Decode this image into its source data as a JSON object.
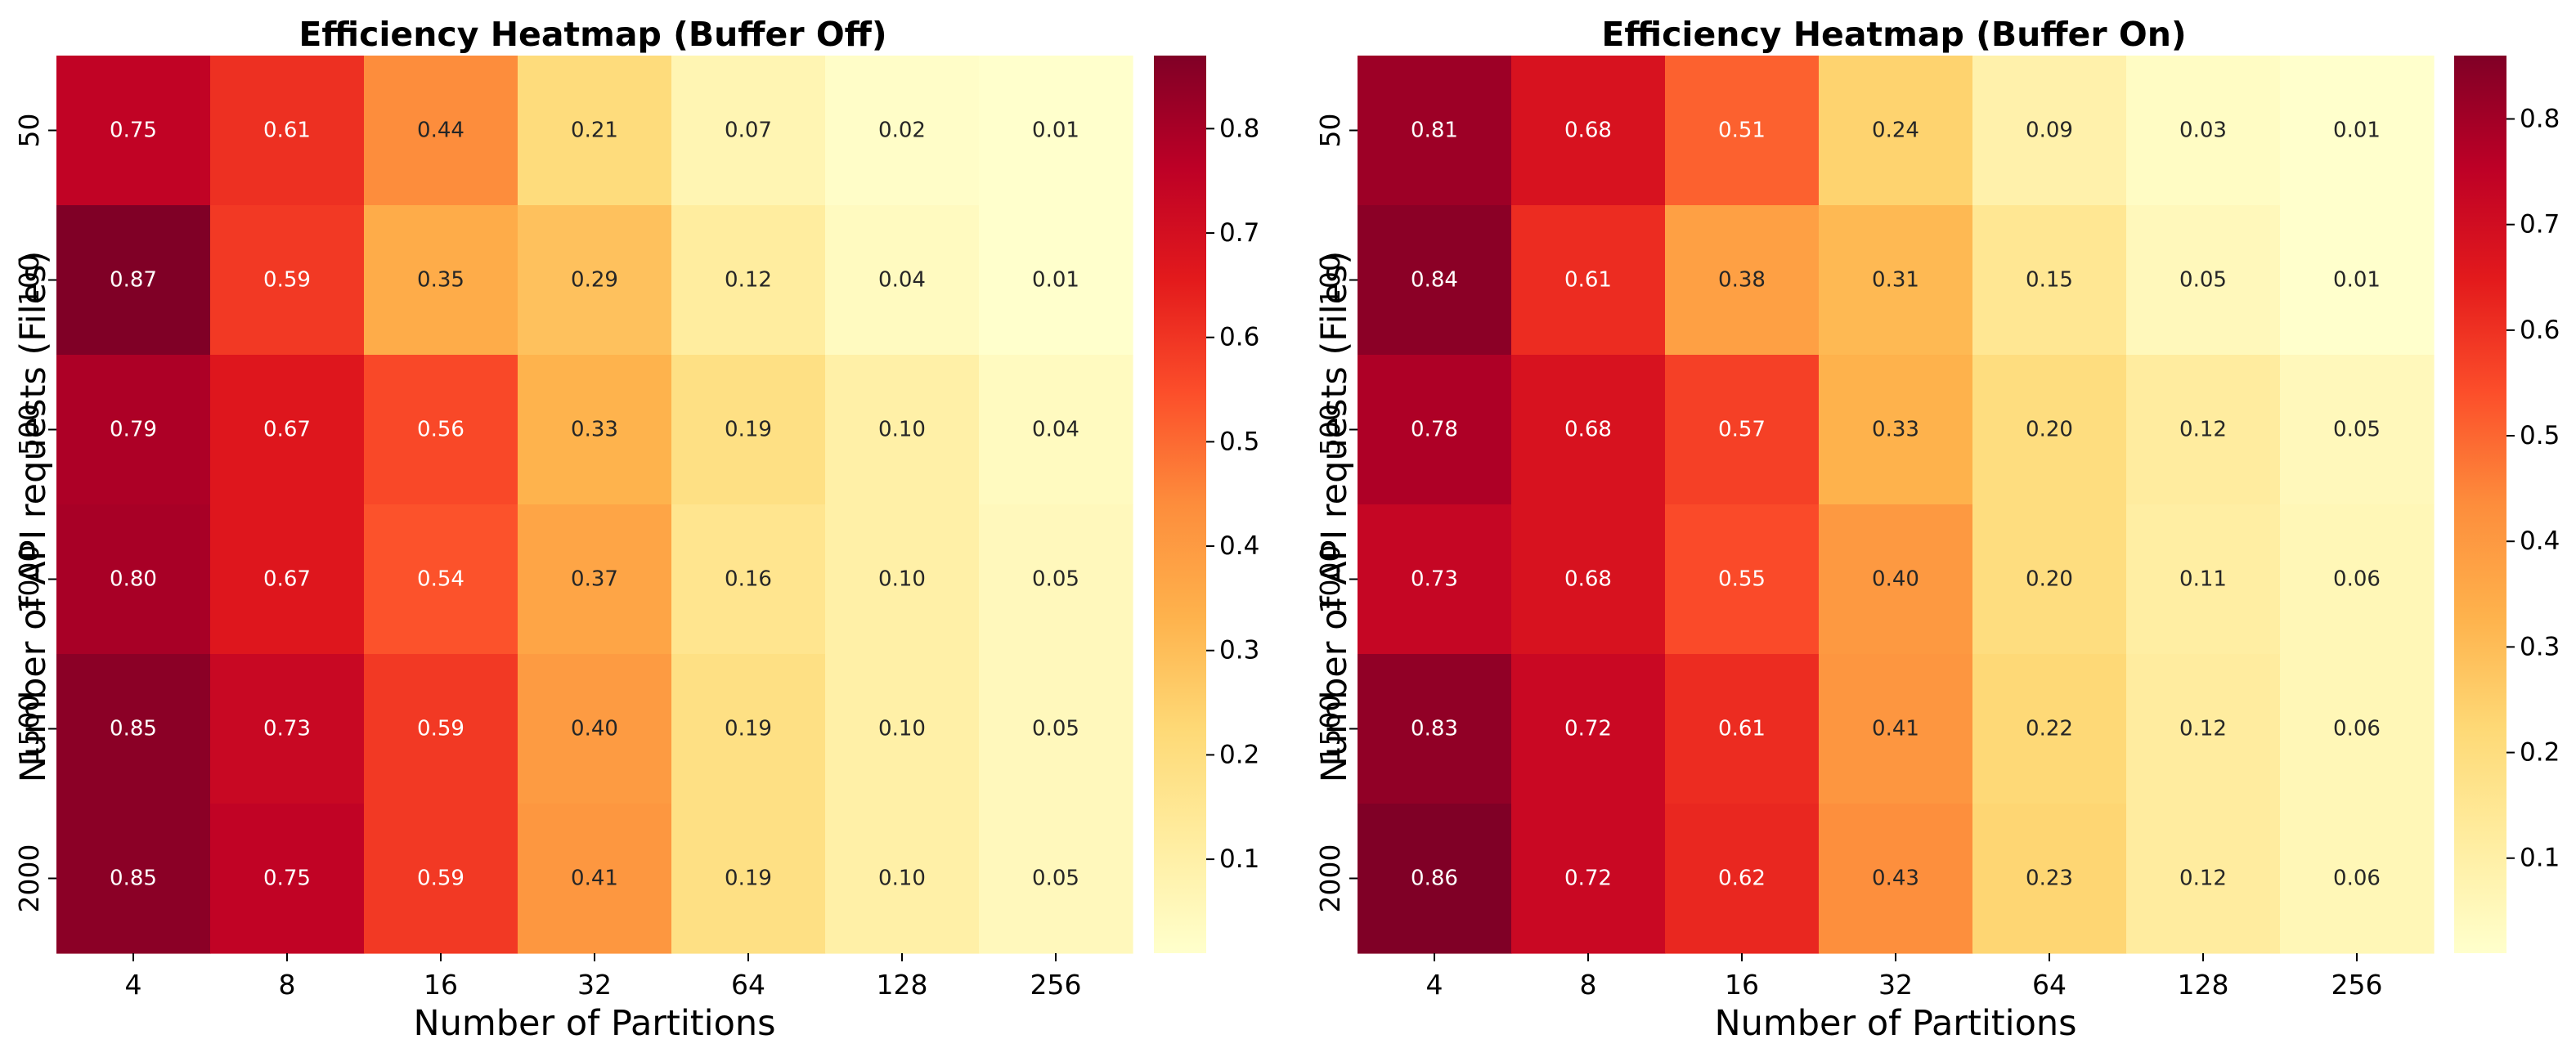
{
  "chart_data": [
    {
      "type": "heatmap",
      "title": "Efficiency Heatmap (Buffer Off)",
      "xlabel": "Number of Partitions",
      "ylabel": "Number of API requests (Files)",
      "x_categories": [
        "4",
        "8",
        "16",
        "32",
        "64",
        "128",
        "256"
      ],
      "y_categories": [
        "50",
        "100",
        "500",
        "1000",
        "1500",
        "2000"
      ],
      "values": [
        [
          0.75,
          0.61,
          0.44,
          0.21,
          0.07,
          0.02,
          0.01
        ],
        [
          0.87,
          0.59,
          0.35,
          0.29,
          0.12,
          0.04,
          0.01
        ],
        [
          0.79,
          0.67,
          0.56,
          0.33,
          0.19,
          0.1,
          0.04
        ],
        [
          0.8,
          0.67,
          0.54,
          0.37,
          0.16,
          0.1,
          0.05
        ],
        [
          0.85,
          0.73,
          0.59,
          0.4,
          0.19,
          0.1,
          0.05
        ],
        [
          0.85,
          0.75,
          0.59,
          0.41,
          0.19,
          0.1,
          0.05
        ]
      ],
      "colormap": "YlOrRd",
      "vmin": 0.01,
      "vmax": 0.87,
      "colorbar_ticks": [
        "0.1",
        "0.2",
        "0.3",
        "0.4",
        "0.5",
        "0.6",
        "0.7",
        "0.8"
      ]
    },
    {
      "type": "heatmap",
      "title": "Efficiency Heatmap (Buffer On)",
      "xlabel": "Number of Partitions",
      "ylabel": "Number of API requests (Files)",
      "x_categories": [
        "4",
        "8",
        "16",
        "32",
        "64",
        "128",
        "256"
      ],
      "y_categories": [
        "50",
        "100",
        "500",
        "1000",
        "1500",
        "2000"
      ],
      "values": [
        [
          0.81,
          0.68,
          0.51,
          0.24,
          0.09,
          0.03,
          0.01
        ],
        [
          0.84,
          0.61,
          0.38,
          0.31,
          0.15,
          0.05,
          0.01
        ],
        [
          0.78,
          0.68,
          0.57,
          0.33,
          0.2,
          0.12,
          0.05
        ],
        [
          0.73,
          0.68,
          0.55,
          0.4,
          0.2,
          0.11,
          0.06
        ],
        [
          0.83,
          0.72,
          0.61,
          0.41,
          0.22,
          0.12,
          0.06
        ],
        [
          0.86,
          0.72,
          0.62,
          0.43,
          0.23,
          0.12,
          0.06
        ]
      ],
      "colormap": "YlOrRd",
      "vmin": 0.01,
      "vmax": 0.86,
      "colorbar_ticks": [
        "0.1",
        "0.2",
        "0.3",
        "0.4",
        "0.5",
        "0.6",
        "0.7",
        "0.8"
      ]
    }
  ]
}
